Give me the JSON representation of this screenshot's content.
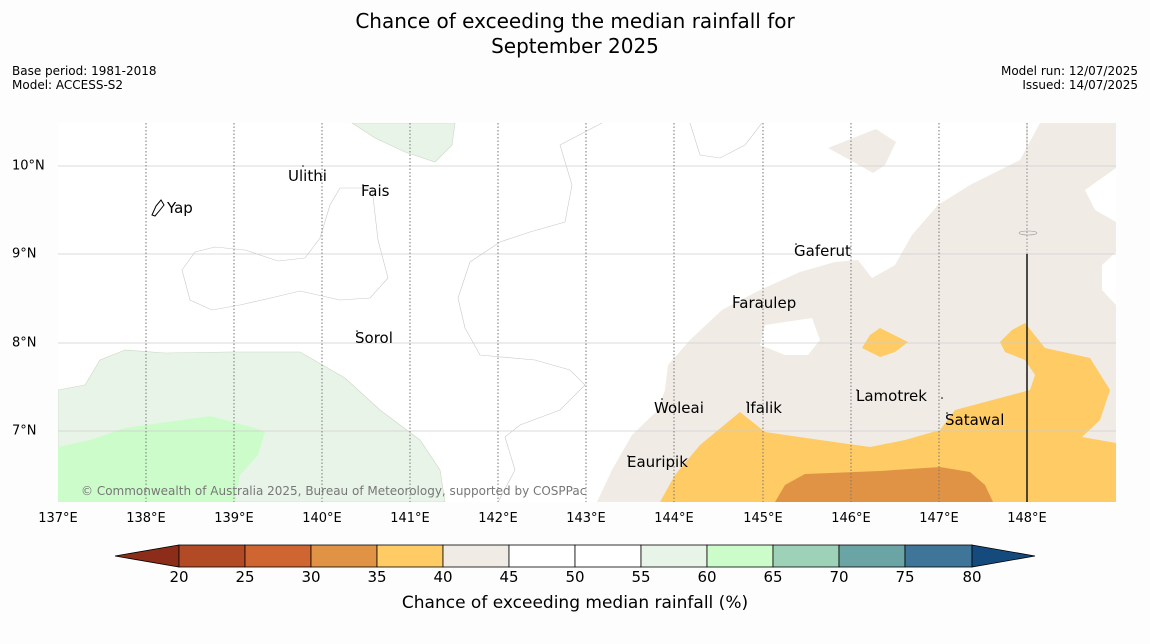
{
  "title_line1": "Chance of exceeding the median rainfall for",
  "title_line2": "September 2025",
  "meta": {
    "base_period": "Base period: 1981-2018",
    "model": "Model: ACCESS-S2",
    "model_run": "Model run: 12/07/2025",
    "issued": "Issued: 14/07/2025"
  },
  "map": {
    "lon_labels": [
      "137°E",
      "138°E",
      "139°E",
      "140°E",
      "141°E",
      "142°E",
      "143°E",
      "144°E",
      "145°E",
      "146°E",
      "147°E",
      "148°E"
    ],
    "lat_labels": [
      "10°N",
      "9°N",
      "8°N",
      "7°N"
    ],
    "places": [
      "Ulithi",
      "Fais",
      "Yap",
      "Gaferut",
      "Faraulep",
      "Sorol",
      "Lamotrek",
      "Woleai",
      "Ifalik",
      "Satawal",
      "Eauripik"
    ],
    "copyright": "© Commonwealth of Australia 2025, Bureau of Meteorology, supported by COSPPac"
  },
  "colorbar": {
    "ticks": [
      "20",
      "25",
      "30",
      "35",
      "40",
      "45",
      "50",
      "55",
      "60",
      "65",
      "70",
      "75",
      "80"
    ],
    "colors": [
      "#8c2d1a",
      "#b34a26",
      "#cf6530",
      "#e09345",
      "#fecb65",
      "#f0ebe5",
      "#ffffff",
      "#ffffff",
      "#e9f4e8",
      "#ccfcca",
      "#9dd2b9",
      "#6ba4a4",
      "#3f7599",
      "#154a7d"
    ],
    "label": "Chance of exceeding median rainfall (%)"
  }
}
